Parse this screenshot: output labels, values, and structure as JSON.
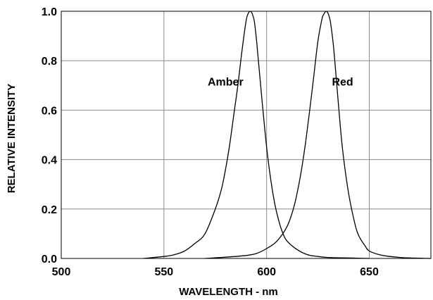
{
  "chart_data": {
    "type": "line",
    "xlabel": "WAVELENGTH - nm",
    "ylabel": "RELATIVE INTENSITY",
    "xlim": [
      500,
      680
    ],
    "ylim": [
      0,
      1.0
    ],
    "xticks": [
      500,
      550,
      600,
      650
    ],
    "yticks": [
      0.0,
      0.2,
      0.4,
      0.6,
      0.8,
      1.0
    ],
    "xtick_labels": [
      "500",
      "550",
      "600",
      "650"
    ],
    "ytick_labels": [
      "0.0",
      "0.2",
      "0.4",
      "0.6",
      "0.8",
      "1.0"
    ],
    "grid": true,
    "series": [
      {
        "name": "Amber",
        "x": [
          540,
          550,
          555,
          560,
          565,
          570,
          575,
          578,
          580,
          582,
          584,
          586,
          588,
          590,
          591,
          592,
          593,
          594,
          595,
          596,
          598,
          600,
          602,
          604,
          606,
          608,
          610,
          615,
          620,
          625,
          630,
          640,
          650
        ],
        "y": [
          0.0,
          0.008,
          0.015,
          0.03,
          0.06,
          0.1,
          0.2,
          0.28,
          0.36,
          0.46,
          0.58,
          0.7,
          0.84,
          0.96,
          0.99,
          1.0,
          0.99,
          0.96,
          0.89,
          0.8,
          0.62,
          0.45,
          0.32,
          0.22,
          0.15,
          0.1,
          0.07,
          0.035,
          0.015,
          0.008,
          0.004,
          0.002,
          0.0
        ]
      },
      {
        "name": "Red",
        "x": [
          570,
          580,
          590,
          595,
          600,
          605,
          610,
          613,
          615,
          617,
          619,
          621,
          623,
          625,
          627,
          628,
          629,
          630,
          631,
          632,
          633,
          635,
          637,
          640,
          643,
          645,
          648,
          650,
          655,
          660,
          665,
          670,
          675,
          680
        ],
        "y": [
          0.0,
          0.005,
          0.012,
          0.02,
          0.04,
          0.07,
          0.13,
          0.2,
          0.27,
          0.36,
          0.47,
          0.6,
          0.74,
          0.88,
          0.97,
          0.99,
          1.0,
          0.99,
          0.96,
          0.9,
          0.82,
          0.62,
          0.44,
          0.26,
          0.14,
          0.09,
          0.05,
          0.03,
          0.015,
          0.008,
          0.004,
          0.002,
          0.001,
          0.0
        ]
      }
    ],
    "annotations": [
      {
        "text": "Amber",
        "x": 580,
        "y": 0.7
      },
      {
        "text": "Red",
        "x": 637,
        "y": 0.7
      }
    ]
  }
}
